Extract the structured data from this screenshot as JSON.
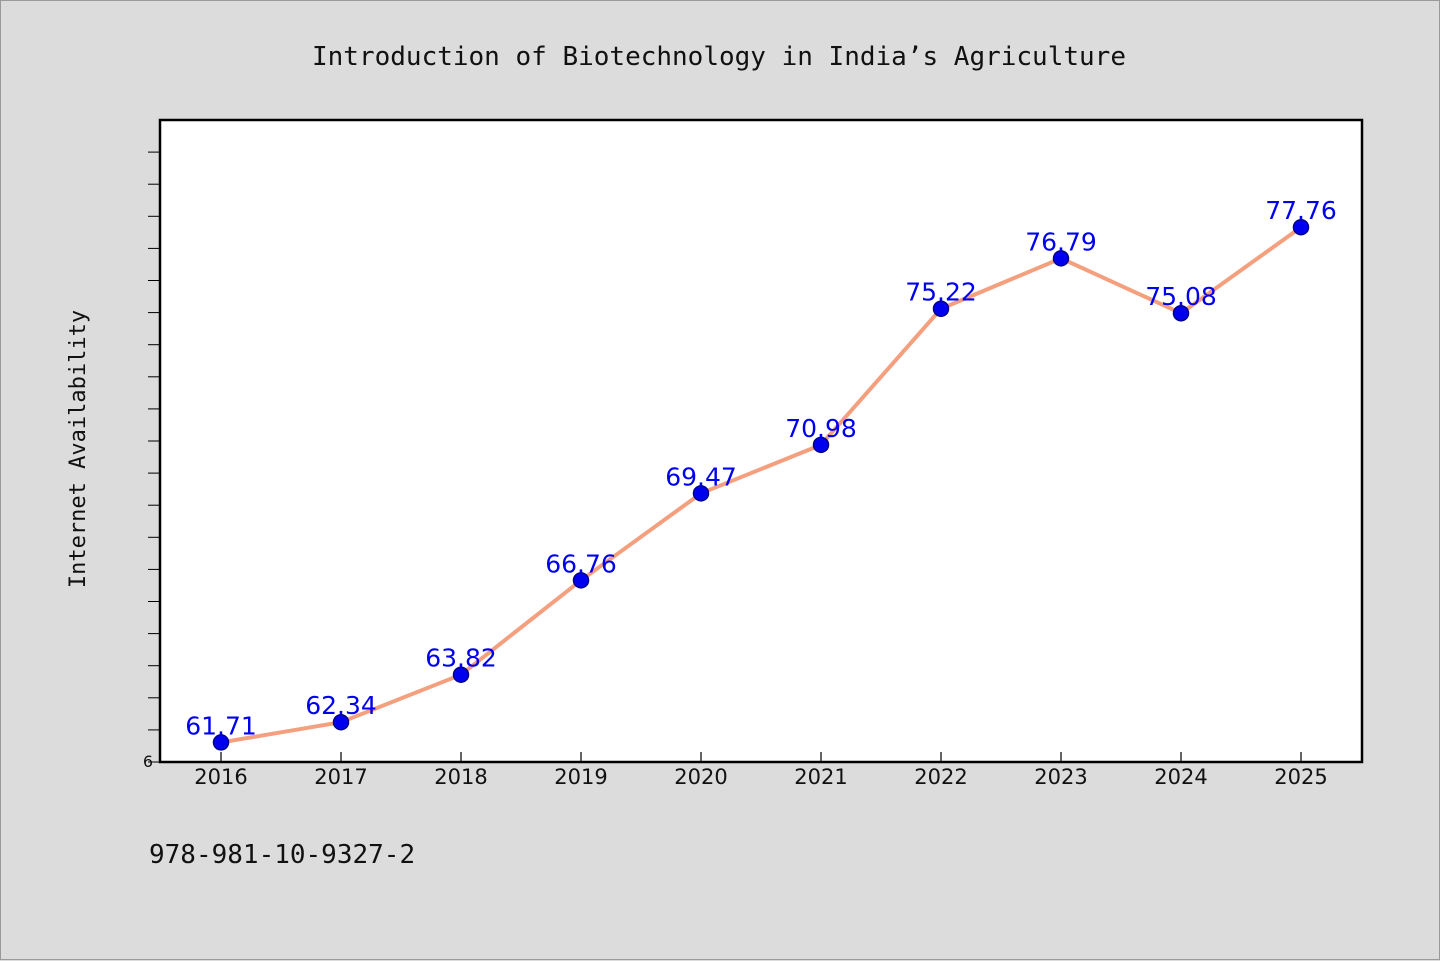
{
  "footer": {
    "isbn": "978-981-10-9327-2"
  },
  "chart_data": {
    "type": "line",
    "title": "Introduction of Biotechnology in India’s Agriculture",
    "xlabel": "",
    "ylabel": "Internet Availability",
    "categories": [
      "2016",
      "2017",
      "2018",
      "2019",
      "2020",
      "2021",
      "2022",
      "2023",
      "2024",
      "2025"
    ],
    "series": [
      {
        "values": [
          61.71,
          62.34,
          63.82,
          66.76,
          69.47,
          70.98,
          75.22,
          76.79,
          75.08,
          77.76
        ]
      }
    ],
    "data_labels": [
      "61.71",
      "62.34",
      "63.82",
      "66.76",
      "69.47",
      "70.98",
      "75.22",
      "76.79",
      "75.08",
      "77.76"
    ],
    "ylim": [
      61.1,
      81.1
    ],
    "ytick_labels": [
      "6"
    ],
    "grid": false,
    "colors": {
      "line": "#f4a07e",
      "marker": "#0000ee",
      "marker_edge": "#00008b",
      "label": "#0000ee",
      "background": "#dcdcdc",
      "plot_background": "#ffffff"
    }
  }
}
